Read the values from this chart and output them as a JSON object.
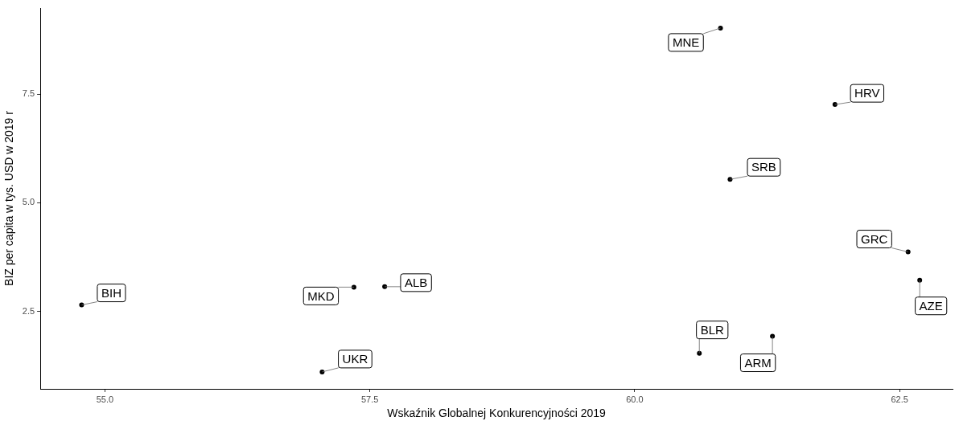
{
  "chart_data": {
    "type": "scatter",
    "xlabel": "Wskaźnik Globalnej Konkurencyjności 2019",
    "ylabel": "BIZ per capita w tys. USD w 2019 r",
    "series": [
      {
        "color": "#000000",
        "x": [
          60.81,
          61.89,
          60.9,
          62.58,
          62.69,
          54.78,
          57.35,
          57.64,
          57.05,
          60.61,
          61.3
        ],
        "values": [
          9.02,
          7.26,
          5.54,
          3.87,
          3.22,
          2.65,
          3.06,
          3.07,
          1.11,
          1.54,
          1.93
        ]
      }
    ],
    "xlim": [
      54.39,
      63.0
    ],
    "ylim": [
      0.72,
      9.48
    ],
    "xticks": [
      {
        "value": 55,
        "label": "55.0"
      },
      {
        "value": 57.5,
        "label": "57.5"
      },
      {
        "value": 60,
        "label": "60.0"
      },
      {
        "value": 62.5,
        "label": "62.5"
      }
    ],
    "yticks": [
      {
        "value": 2.5,
        "label": "2.5"
      },
      {
        "value": 5,
        "label": "5.0"
      },
      {
        "value": 7.5,
        "label": "7.5"
      }
    ],
    "marker": "circle",
    "grid": false,
    "legend": false,
    "annotations": [
      {
        "text": "MNE",
        "x": 60.81,
        "y": 9.02
      },
      {
        "text": "HRV",
        "x": 61.89,
        "y": 7.26
      },
      {
        "text": "SRB",
        "x": 60.9,
        "y": 5.54
      },
      {
        "text": "GRC",
        "x": 62.58,
        "y": 3.87
      },
      {
        "text": "AZE",
        "x": 62.69,
        "y": 3.22
      },
      {
        "text": "BIH",
        "x": 54.78,
        "y": 2.65
      },
      {
        "text": "MKD",
        "x": 57.35,
        "y": 3.06
      },
      {
        "text": "ALB",
        "x": 57.64,
        "y": 3.07
      },
      {
        "text": "UKR",
        "x": 57.05,
        "y": 1.11
      },
      {
        "text": "BLR",
        "x": 60.61,
        "y": 1.54
      },
      {
        "text": "ARM",
        "x": 61.3,
        "y": 1.93
      }
    ]
  }
}
